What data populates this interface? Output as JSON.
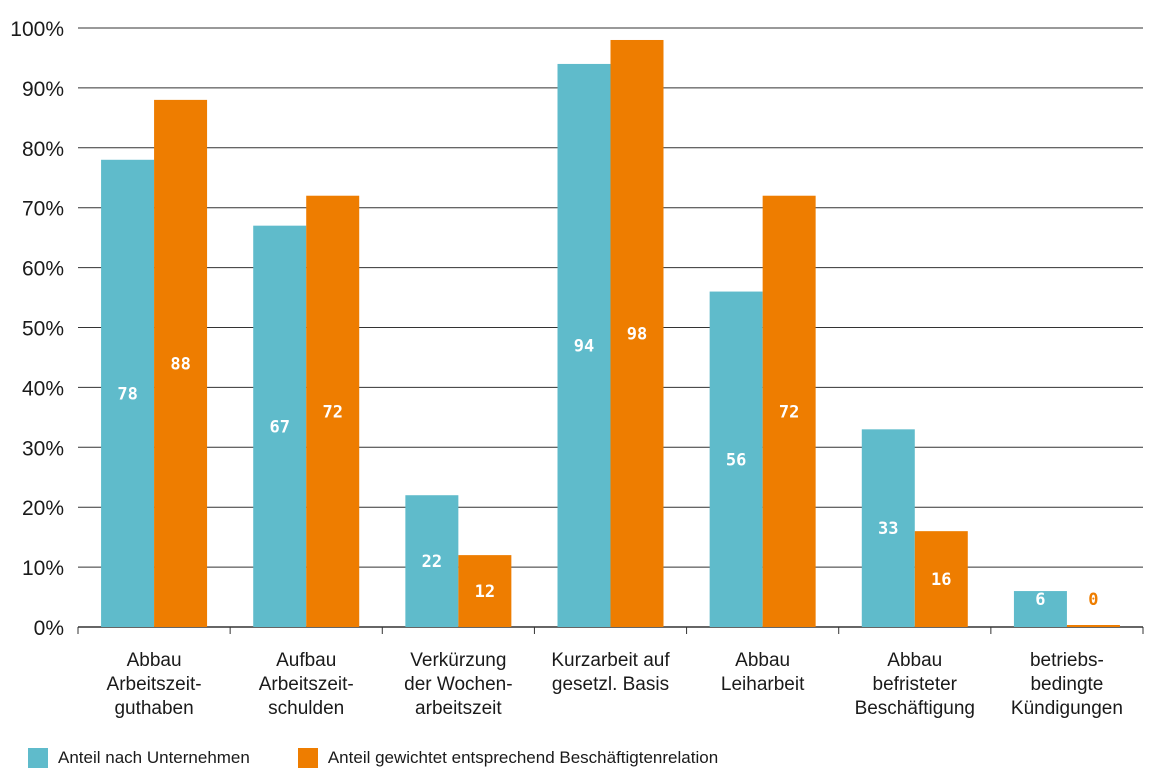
{
  "chart_data": {
    "type": "bar",
    "categories": [
      [
        "Abbau",
        "Arbeitszeit-",
        "guthaben"
      ],
      [
        "Aufbau",
        "Arbeitszeit-",
        "schulden"
      ],
      [
        "Verkürzung",
        "der Wochen-",
        "arbeitszeit"
      ],
      [
        "Kurzarbeit auf",
        "gesetzl. Basis"
      ],
      [
        "Abbau",
        "Leiharbeit"
      ],
      [
        "Abbau",
        "befristeter",
        "Beschäftigung"
      ],
      [
        "betriebs-",
        "bedingte",
        "Kündigungen"
      ]
    ],
    "series": [
      {
        "name": "Anteil nach Unternehmen",
        "color": "#5fbbcb",
        "values": [
          78,
          67,
          22,
          94,
          56,
          33,
          6
        ],
        "labels": [
          "78",
          "67",
          "22",
          "94",
          "56",
          "33",
          "6"
        ]
      },
      {
        "name": "Anteil gewichtet entsprechend Beschäftigtenrelation",
        "color": "#ee7d00",
        "values": [
          88,
          72,
          12,
          98,
          72,
          16,
          0
        ],
        "labels": [
          "88",
          "72",
          "12",
          "98",
          "72",
          "16",
          "0"
        ]
      }
    ],
    "ylim": [
      0,
      100
    ],
    "yticks": [
      "0%",
      "10%",
      "20%",
      "30%",
      "40%",
      "50%",
      "60%",
      "70%",
      "80%",
      "90%",
      "100%"
    ],
    "grid": true,
    "legend_position": "bottom-left"
  }
}
